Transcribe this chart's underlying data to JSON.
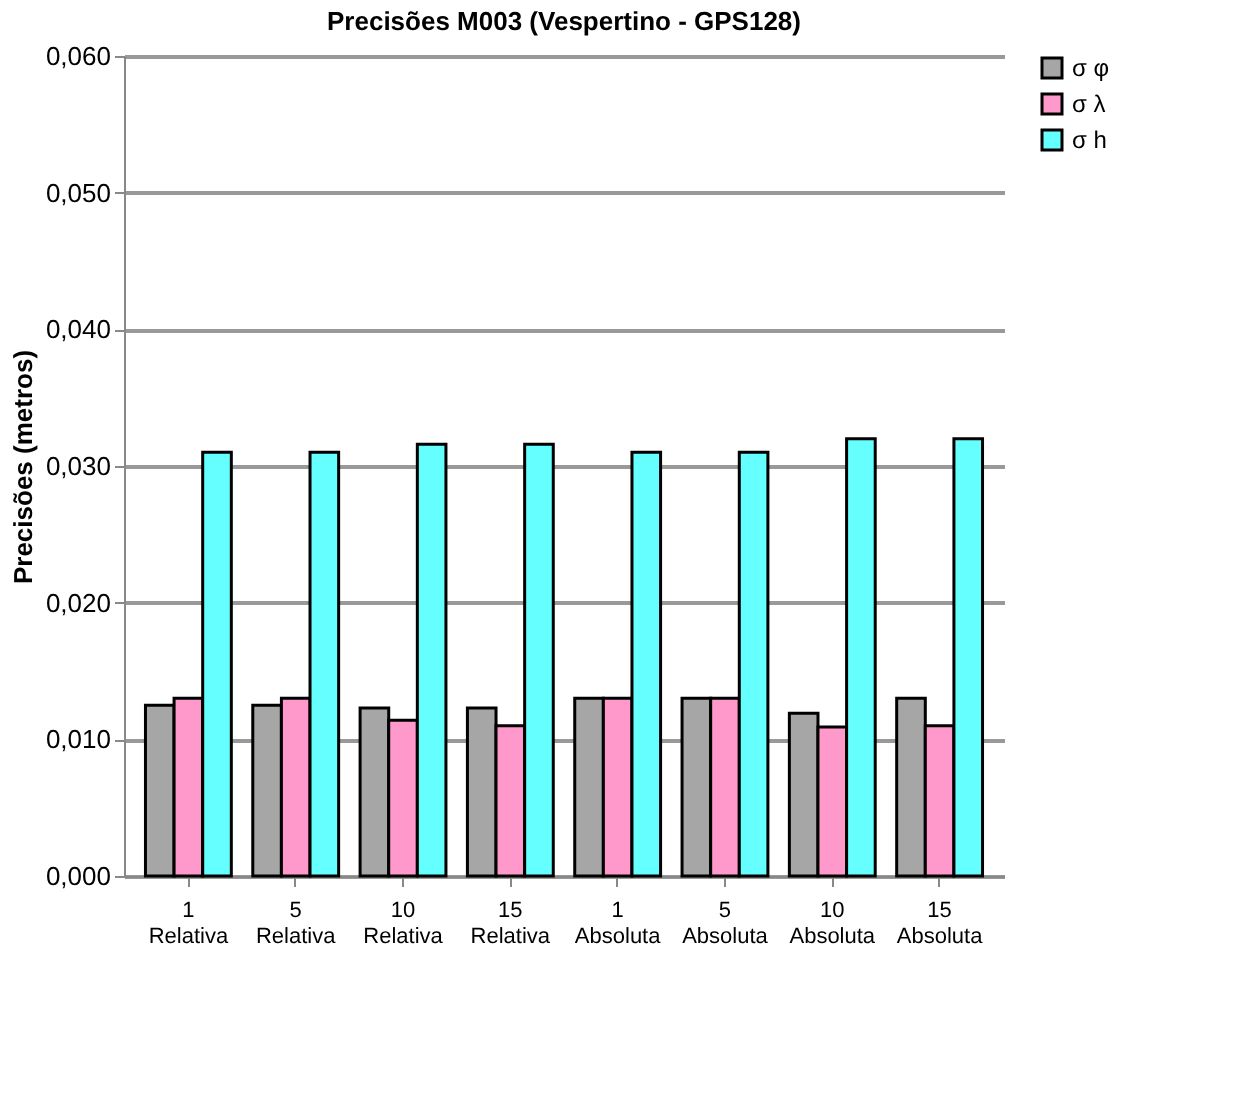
{
  "chart_data": {
    "type": "bar",
    "title": "Precisões M003 (Vespertino - GPS128)",
    "ylabel": "Precisões (metros)",
    "categories": [
      "1\nRelativa",
      "5\nRelativa",
      "10\nRelativa",
      "15\nRelativa",
      "1\nAbsoluta",
      "5\nAbsoluta",
      "10\nAbsoluta",
      "15\nAbsoluta"
    ],
    "series": [
      {
        "name": "σ φ",
        "color": "#a6a6a6",
        "values": [
          0.0125,
          0.0125,
          0.0123,
          0.0123,
          0.013,
          0.013,
          0.0119,
          0.013
        ]
      },
      {
        "name": "σ λ",
        "color": "#ff99cc",
        "values": [
          0.013,
          0.013,
          0.0114,
          0.011,
          0.013,
          0.013,
          0.0109,
          0.011
        ]
      },
      {
        "name": "σ h",
        "color": "#66ffff",
        "values": [
          0.031,
          0.031,
          0.0316,
          0.0316,
          0.031,
          0.031,
          0.032,
          0.032
        ]
      }
    ],
    "ylim": [
      0,
      0.06
    ],
    "yticks": [
      {
        "value": 0,
        "label": "0,000"
      },
      {
        "value": 0.01,
        "label": "0,010"
      },
      {
        "value": 0.02,
        "label": "0,020"
      },
      {
        "value": 0.03,
        "label": "0,030"
      },
      {
        "value": 0.04,
        "label": "0,040"
      },
      {
        "value": 0.05,
        "label": "0,050"
      },
      {
        "value": 0.06,
        "label": "0,060"
      }
    ],
    "grid": "y",
    "legend": "right"
  }
}
